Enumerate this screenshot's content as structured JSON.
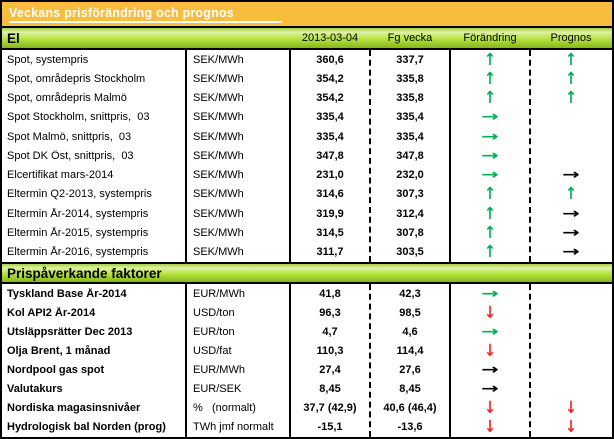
{
  "title": "Veckans prisförändring och prognos",
  "columns": [
    "2013-03-04",
    "Fg vecka",
    "Förändring",
    "Prognos"
  ],
  "colors": {
    "title_bg": "#f8bd3d",
    "title_text": "#ffffff",
    "hdr_g1": "#a8cf46",
    "hdr_g2": "#ddf2a4",
    "hdr_g3": "#b5e23e",
    "hdr_g4": "#86b61c",
    "arrow_green": "#00b050",
    "arrow_red": "#ff1f1f",
    "arrow_black": "#000000"
  },
  "arrow_glyphs": {
    "up": "↑",
    "right": "→",
    "down": "↓"
  },
  "sections": [
    {
      "header": "El",
      "rows": [
        {
          "label": "Spot, systempris",
          "unit": "SEK/MWh",
          "current": "360,6",
          "previous": "337,7",
          "change": "up-green",
          "forecast": "up-green"
        },
        {
          "label": "Spot, områdepris Stockholm",
          "unit": "SEK/MWh",
          "current": "354,2",
          "previous": "335,8",
          "change": "up-green",
          "forecast": "up-green"
        },
        {
          "label": "Spot, områdepris Malmö",
          "unit": "SEK/MWh",
          "current": "354,2",
          "previous": "335,8",
          "change": "up-green",
          "forecast": "up-green"
        },
        {
          "label": "Spot Stockholm, snittpris,  03",
          "unit": "SEK/MWh",
          "current": "335,4",
          "previous": "335,4",
          "change": "right-green",
          "forecast": "none"
        },
        {
          "label": "Spot Malmö, snittpris,  03",
          "unit": "SEK/MWh",
          "current": "335,4",
          "previous": "335,4",
          "change": "right-green",
          "forecast": "none"
        },
        {
          "label": "Spot DK Öst, snittpris,  03",
          "unit": "SEK/MWh",
          "current": "347,8",
          "previous": "347,8",
          "change": "right-green",
          "forecast": "none"
        },
        {
          "label": "Elcertifikat mars-2014",
          "unit": "SEK/MWh",
          "current": "231,0",
          "previous": "232,0",
          "change": "right-green",
          "forecast": "right-black"
        },
        {
          "label": "Eltermin Q2-2013, systempris",
          "unit": "SEK/MWh",
          "current": "314,6",
          "previous": "307,3",
          "change": "up-green",
          "forecast": "up-green"
        },
        {
          "label": "Eltermin År-2014, systempris",
          "unit": "SEK/MWh",
          "current": "319,9",
          "previous": "312,4",
          "change": "up-green",
          "forecast": "right-black"
        },
        {
          "label": "Eltermin År-2015, systempris",
          "unit": "SEK/MWh",
          "current": "314,5",
          "previous": "307,8",
          "change": "up-green",
          "forecast": "right-black"
        },
        {
          "label": "Eltermin År-2016, systempris",
          "unit": "SEK/MWh",
          "current": "311,7",
          "previous": "303,5",
          "change": "up-green",
          "forecast": "right-black"
        }
      ]
    },
    {
      "header": "Prispåverkande faktorer",
      "rows": [
        {
          "label": "Tyskland Base År-2014",
          "unit": "EUR/MWh",
          "current": "41,8",
          "previous": "42,3",
          "change": "right-green",
          "forecast": "none"
        },
        {
          "label": "Kol API2 År-2014",
          "unit": "USD/ton",
          "current": "96,3",
          "previous": "98,5",
          "change": "down-red",
          "forecast": "none"
        },
        {
          "label": "Utsläppsrätter Dec 2013",
          "unit": "EUR/ton",
          "current": "4,7",
          "previous": "4,6",
          "change": "right-green",
          "forecast": "none"
        },
        {
          "label": "Olja Brent, 1 månad",
          "unit": "USD/fat",
          "current": "110,3",
          "previous": "114,4",
          "change": "down-red",
          "forecast": "none"
        },
        {
          "label": "Nordpool gas spot",
          "unit": "EUR/MWh",
          "current": "27,4",
          "previous": "27,6",
          "change": "right-black",
          "forecast": "none"
        },
        {
          "label": "Valutakurs",
          "unit": "EUR/SEK",
          "current": "8,45",
          "previous": "8,45",
          "change": "right-black",
          "forecast": "none"
        },
        {
          "label": "Nordiska magasinsnivåer",
          "unit": "%   (normalt)",
          "current": "37,7 (42,9)",
          "previous": "40,6 (46,4)",
          "change": "down-red",
          "forecast": "down-red"
        },
        {
          "label": "Hydrologisk bal Norden (prog)",
          "unit": "TWh jmf normalt",
          "current": "-15,1",
          "previous": "-13,6",
          "change": "down-red",
          "forecast": "down-red"
        }
      ]
    }
  ]
}
